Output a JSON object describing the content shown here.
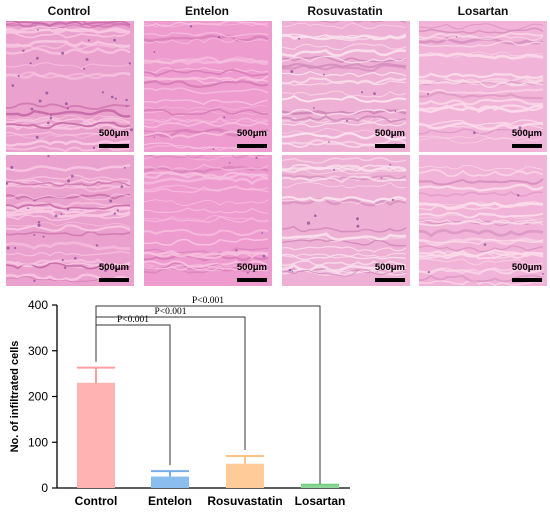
{
  "figure": {
    "columns": [
      {
        "title": "Control",
        "bg": "#eba1cd",
        "fiber": "#f8c8e2",
        "dark": "#c76aa8",
        "dots": 28
      },
      {
        "title": "Entelon",
        "bg": "#ee9ccf",
        "fiber": "#f7c2e0",
        "dark": "#d57ab6",
        "dots": 6
      },
      {
        "title": "Rosuvastatin",
        "bg": "#eeb0d4",
        "fiber": "#fae2ee",
        "dark": "#cf86b8",
        "dots": 10
      },
      {
        "title": "Losartan",
        "bg": "#f1b4d8",
        "fiber": "#fbdbea",
        "dark": "#d991c0",
        "dots": 4
      }
    ],
    "scale_label": "500μm"
  },
  "chart_data": {
    "type": "bar",
    "categories": [
      "Control",
      "Entelon",
      "Rosuvastatin",
      "Losartan"
    ],
    "values": [
      230,
      25,
      53,
      5
    ],
    "errors": [
      33,
      12,
      17,
      2
    ],
    "colors": [
      "#ffb3b3",
      "#8cbdef",
      "#ffcc99",
      "#8fd69b"
    ],
    "error_colors": [
      "#ff9e9e",
      "#79aee8",
      "#ffc285",
      "#6fcf7f"
    ],
    "ylabel": "No. of infiltrated cells",
    "ylim": [
      0,
      400
    ],
    "yticks": [
      0,
      100,
      200,
      300,
      400
    ],
    "comparisons": [
      {
        "from": "Control",
        "to": "Entelon",
        "label": "P<0.001"
      },
      {
        "from": "Control",
        "to": "Rosuvastatin",
        "label": "P<0.001"
      },
      {
        "from": "Control",
        "to": "Losartan",
        "label": "P<0.001"
      }
    ]
  }
}
